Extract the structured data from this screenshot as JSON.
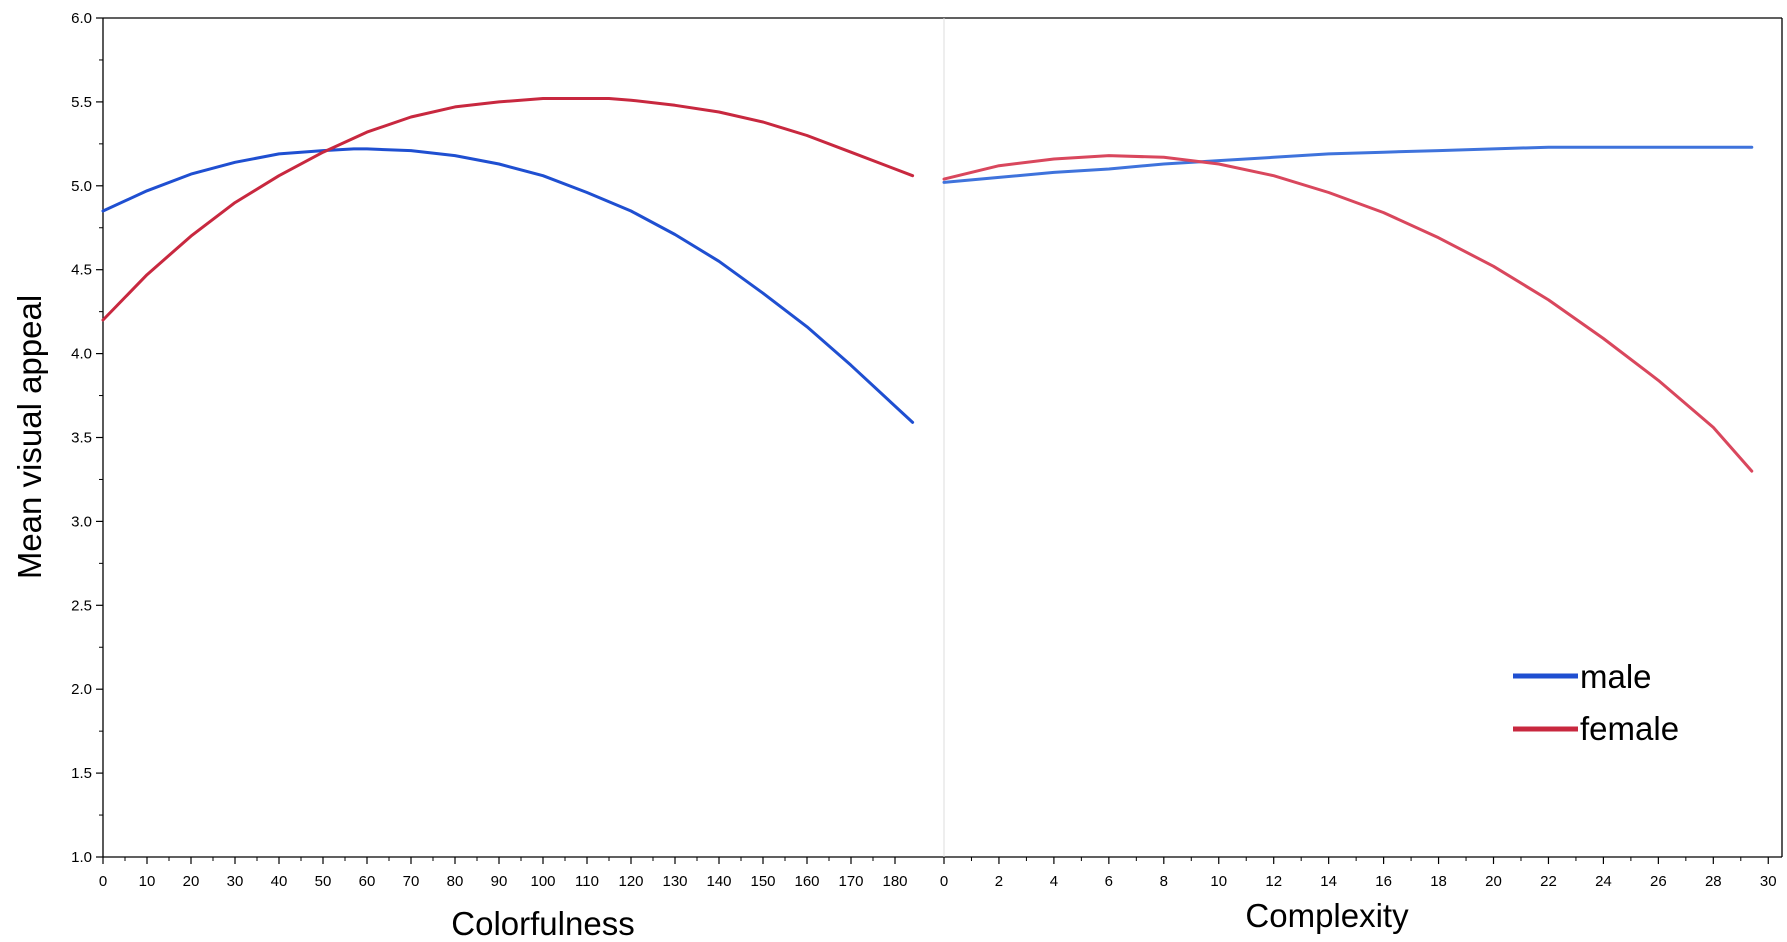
{
  "chart_data": {
    "type": "line",
    "ylabel": "Mean visual appeal",
    "ylim": [
      1.0,
      6.0
    ],
    "yticks": [
      "1.0",
      "1.5",
      "2.0",
      "2.5",
      "3.0",
      "3.5",
      "4.0",
      "4.5",
      "5.0",
      "5.5",
      "6.0"
    ],
    "legend": {
      "placement": "bottom-right",
      "entries": [
        {
          "name": "male",
          "color": "#1f4fd1"
        },
        {
          "name": "female",
          "color": "#c8283f"
        }
      ]
    },
    "panels": [
      {
        "xlabel": "Colorfulness",
        "xlim": [
          0,
          185
        ],
        "xticks": [
          "0",
          "10",
          "20",
          "30",
          "40",
          "50",
          "60",
          "70",
          "80",
          "90",
          "100",
          "110",
          "120",
          "130",
          "140",
          "150",
          "160",
          "170",
          "180"
        ],
        "series": [
          {
            "name": "male",
            "color": "#1f4fd1",
            "x": [
              0,
              10,
              20,
              30,
              40,
              50,
              57,
              60,
              70,
              80,
              90,
              100,
              110,
              120,
              130,
              140,
              150,
              160,
              170,
              184
            ],
            "y": [
              4.85,
              4.97,
              5.07,
              5.14,
              5.19,
              5.21,
              5.22,
              5.22,
              5.21,
              5.18,
              5.13,
              5.06,
              4.96,
              4.85,
              4.71,
              4.55,
              4.36,
              4.16,
              3.93,
              3.59
            ]
          },
          {
            "name": "female",
            "color": "#c8283f",
            "x": [
              0,
              10,
              20,
              30,
              40,
              50,
              60,
              70,
              80,
              90,
              100,
              110,
              115,
              120,
              130,
              140,
              150,
              160,
              170,
              184
            ],
            "y": [
              4.2,
              4.47,
              4.7,
              4.9,
              5.06,
              5.2,
              5.32,
              5.41,
              5.47,
              5.5,
              5.52,
              5.52,
              5.52,
              5.51,
              5.48,
              5.44,
              5.38,
              5.3,
              5.2,
              5.06
            ]
          }
        ]
      },
      {
        "xlabel": "Complexity",
        "xlim": [
          0,
          30.5
        ],
        "xticks": [
          "0",
          "2",
          "4",
          "6",
          "8",
          "10",
          "12",
          "14",
          "16",
          "18",
          "20",
          "22",
          "24",
          "26",
          "28",
          "30"
        ],
        "series": [
          {
            "name": "male",
            "color": "#3f73dc",
            "x": [
              0,
              2,
              4,
              6,
              8,
              10,
              12,
              14,
              16,
              18,
              20,
              22,
              24,
              26,
              28,
              29.4
            ],
            "y": [
              5.02,
              5.05,
              5.08,
              5.1,
              5.13,
              5.15,
              5.17,
              5.19,
              5.2,
              5.21,
              5.22,
              5.23,
              5.23,
              5.23,
              5.23,
              5.23
            ]
          },
          {
            "name": "female",
            "color": "#d9475d",
            "x": [
              0,
              2,
              4,
              6,
              8,
              10,
              12,
              14,
              16,
              18,
              20,
              22,
              24,
              26,
              28,
              29.4
            ],
            "y": [
              5.04,
              5.12,
              5.16,
              5.18,
              5.17,
              5.13,
              5.06,
              4.96,
              4.84,
              4.69,
              4.52,
              4.32,
              4.09,
              3.84,
              3.56,
              3.3
            ]
          }
        ]
      }
    ]
  }
}
